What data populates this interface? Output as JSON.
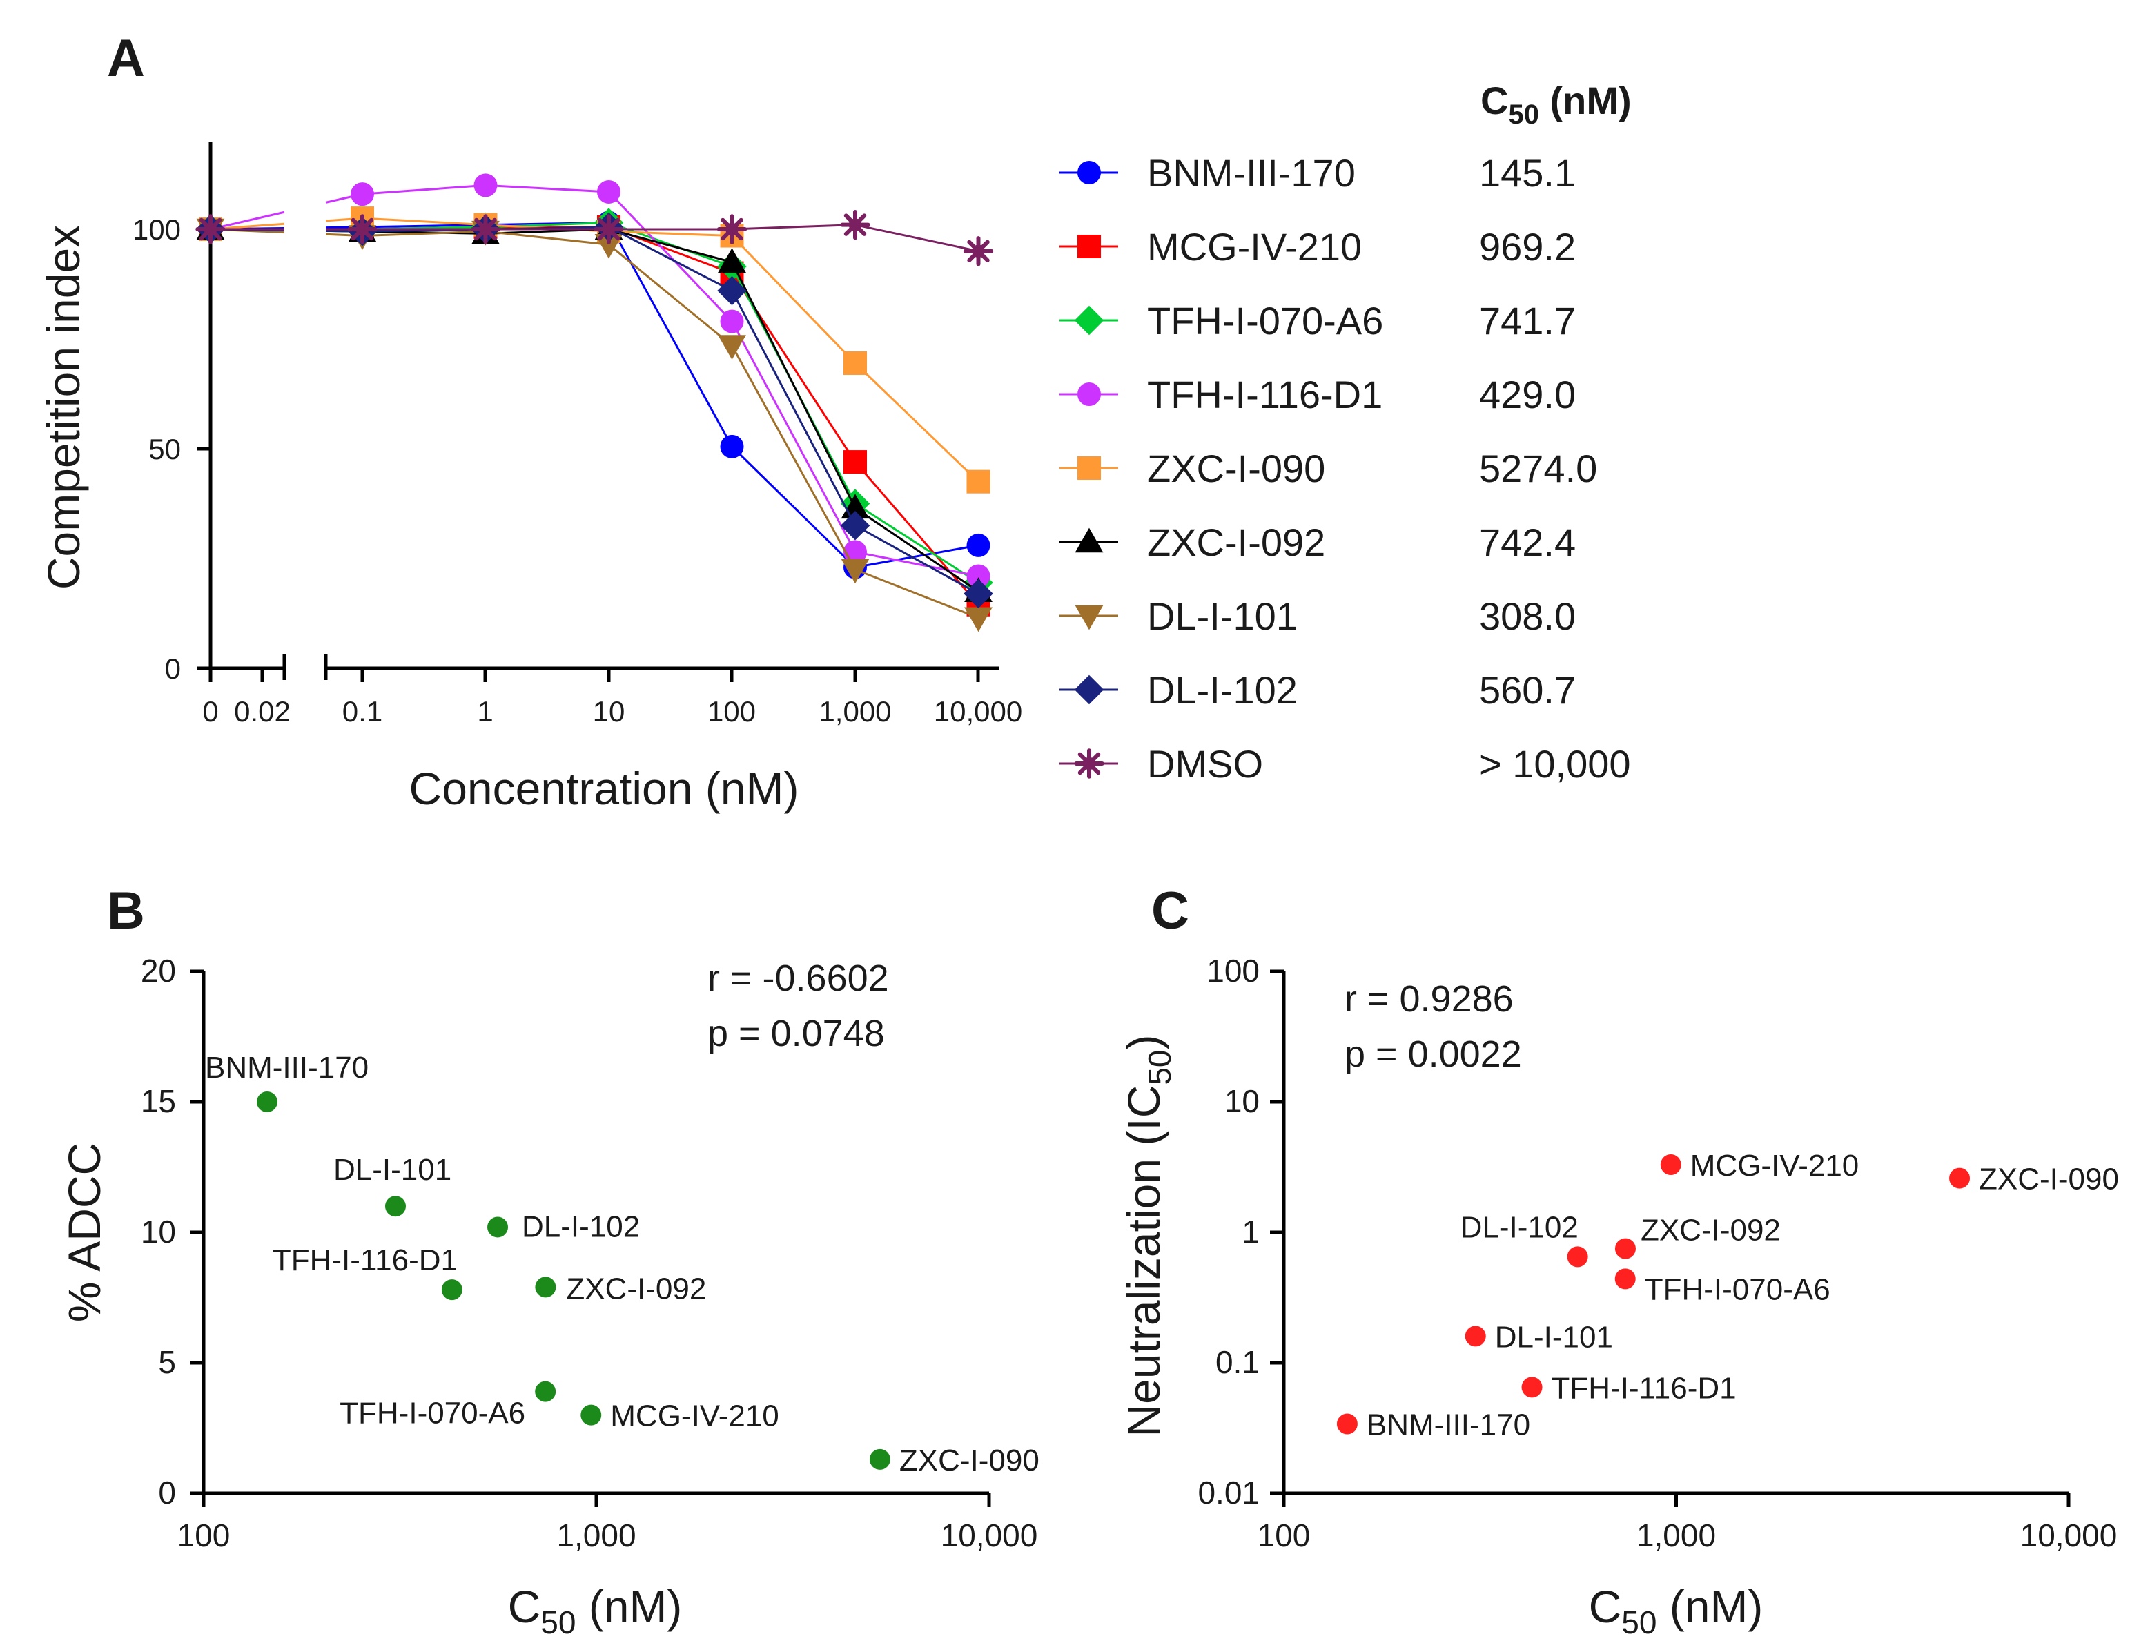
{
  "panelA": {
    "letter": "A",
    "ylabel": "Competition index",
    "xlabel": "Concentration (nM)",
    "yticks": [
      {
        "v": 0,
        "label": "0"
      },
      {
        "v": 50,
        "label": "50"
      },
      {
        "v": 100,
        "label": "100"
      }
    ],
    "xticks": [
      "0",
      "0.02",
      "0.1",
      "1",
      "10",
      "100",
      "1,000",
      "10,000"
    ],
    "ylim": [
      0,
      120
    ],
    "c50_header": {
      "main": "C",
      "sub": "50",
      "unit": " (nM)"
    }
  },
  "chart_data": [
    {
      "type": "line",
      "panel": "A",
      "title": "",
      "xlabel": "Concentration (nM)",
      "ylabel": "Competition index",
      "x_scale": "log with broken axis at 0",
      "x": [
        0,
        0.1,
        1,
        10,
        100,
        1000,
        10000
      ],
      "ylim": [
        0,
        120
      ],
      "series": [
        {
          "name": "BNM-III-170",
          "c50": "145.1",
          "color": "#0000ff",
          "marker": "circle",
          "values": [
            100,
            100.5,
            101,
            101.5,
            50.5,
            23,
            28
          ]
        },
        {
          "name": "MCG-IV-210",
          "c50": "969.2",
          "color": "#ff0000",
          "marker": "square",
          "values": [
            100,
            100,
            100.5,
            100.5,
            90,
            47,
            14.5
          ]
        },
        {
          "name": "TFH-I-070-A6",
          "c50": "741.7",
          "color": "#00cc33",
          "marker": "diamond",
          "values": [
            100,
            100,
            100.5,
            101.5,
            91.5,
            37.5,
            19.5
          ]
        },
        {
          "name": "TFH-I-116-D1",
          "c50": "429.0",
          "color": "#cc33ff",
          "marker": "circle",
          "values": [
            100,
            108,
            110,
            108.5,
            79,
            26.5,
            21
          ]
        },
        {
          "name": "ZXC-I-090",
          "c50": "5274.0",
          "color": "#ff9933",
          "marker": "square",
          "values": [
            100,
            102.5,
            101,
            99.5,
            98.5,
            69.5,
            42.5
          ]
        },
        {
          "name": "ZXC-I-092",
          "c50": "742.4",
          "color": "#000000",
          "marker": "triangle-up",
          "values": [
            100,
            99.5,
            99,
            100,
            92.5,
            36.5,
            17.5
          ]
        },
        {
          "name": "DL-I-101",
          "c50": "308.0",
          "color": "#a0702a",
          "marker": "triangle-down",
          "values": [
            100,
            98.5,
            99.5,
            96.5,
            73.5,
            22.5,
            11.5
          ]
        },
        {
          "name": "DL-I-102",
          "c50": "560.7",
          "color": "#1a237e",
          "marker": "diamond",
          "values": [
            100,
            99.5,
            100,
            100.5,
            86,
            32.5,
            17
          ]
        },
        {
          "name": "DMSO",
          "c50": "> 10,000",
          "color": "#7a2060",
          "marker": "star",
          "values": [
            100,
            100,
            100,
            100,
            100,
            101,
            95
          ]
        }
      ]
    },
    {
      "type": "scatter",
      "panel": "B",
      "xlabel": "C50 (nM)",
      "ylabel": "% ADCC",
      "x_scale": "log",
      "xlim": [
        100,
        10000
      ],
      "ylim": [
        0,
        20
      ],
      "color": "#1b8a1b",
      "points": [
        {
          "label": "BNM-III-170",
          "x": 145.1,
          "y": 15.0
        },
        {
          "label": "DL-I-101",
          "x": 308.0,
          "y": 11.0
        },
        {
          "label": "DL-I-102",
          "x": 560.7,
          "y": 10.2
        },
        {
          "label": "TFH-I-116-D1",
          "x": 429.0,
          "y": 7.8
        },
        {
          "label": "ZXC-I-092",
          "x": 742.4,
          "y": 7.9
        },
        {
          "label": "TFH-I-070-A6",
          "x": 741.7,
          "y": 3.9
        },
        {
          "label": "MCG-IV-210",
          "x": 969.2,
          "y": 3.0
        },
        {
          "label": "ZXC-I-090",
          "x": 5274.0,
          "y": 1.3
        }
      ],
      "r_label": "r = -0.6602",
      "p_label": "p =  0.0748"
    },
    {
      "type": "scatter",
      "panel": "C",
      "xlabel": "C50 (nM)",
      "ylabel": "Neutralization (IC50)",
      "x_scale": "log",
      "y_scale": "log",
      "xlim": [
        100,
        10000
      ],
      "ylim": [
        0.01,
        100
      ],
      "color": "#ff2020",
      "points": [
        {
          "label": "MCG-IV-210",
          "x": 969.2,
          "y": 3.3
        },
        {
          "label": "ZXC-I-090",
          "x": 5274.0,
          "y": 2.6
        },
        {
          "label": "DL-I-102",
          "x": 560.7,
          "y": 0.65
        },
        {
          "label": "ZXC-I-092",
          "x": 742.4,
          "y": 0.75
        },
        {
          "label": "TFH-I-070-A6",
          "x": 741.7,
          "y": 0.44
        },
        {
          "label": "DL-I-101",
          "x": 308.0,
          "y": 0.16
        },
        {
          "label": "TFH-I-116-D1",
          "x": 429.0,
          "y": 0.065
        },
        {
          "label": "BNM-III-170",
          "x": 145.1,
          "y": 0.034
        }
      ],
      "r_label": "r = 0.9286",
      "p_label": "p = 0.0022"
    }
  ],
  "panelB": {
    "letter": "B",
    "ylabel": "% ADCC",
    "xlabel": {
      "main": "C",
      "sub": "50",
      "unit": " (nM)"
    },
    "yticks": [
      "0",
      "5",
      "10",
      "15",
      "20"
    ],
    "xticks": [
      "100",
      "1,000",
      "10,000"
    ]
  },
  "panelC": {
    "letter": "C",
    "ylabel": {
      "main": "Neutralization (IC",
      "sub": "50",
      "unit": ")"
    },
    "xlabel": {
      "main": "C",
      "sub": "50",
      "unit": " (nM)"
    },
    "yticks": [
      "0.01",
      "0.1",
      "1",
      "10",
      "100"
    ],
    "xticks": [
      "100",
      "1,000",
      "10,000"
    ]
  }
}
